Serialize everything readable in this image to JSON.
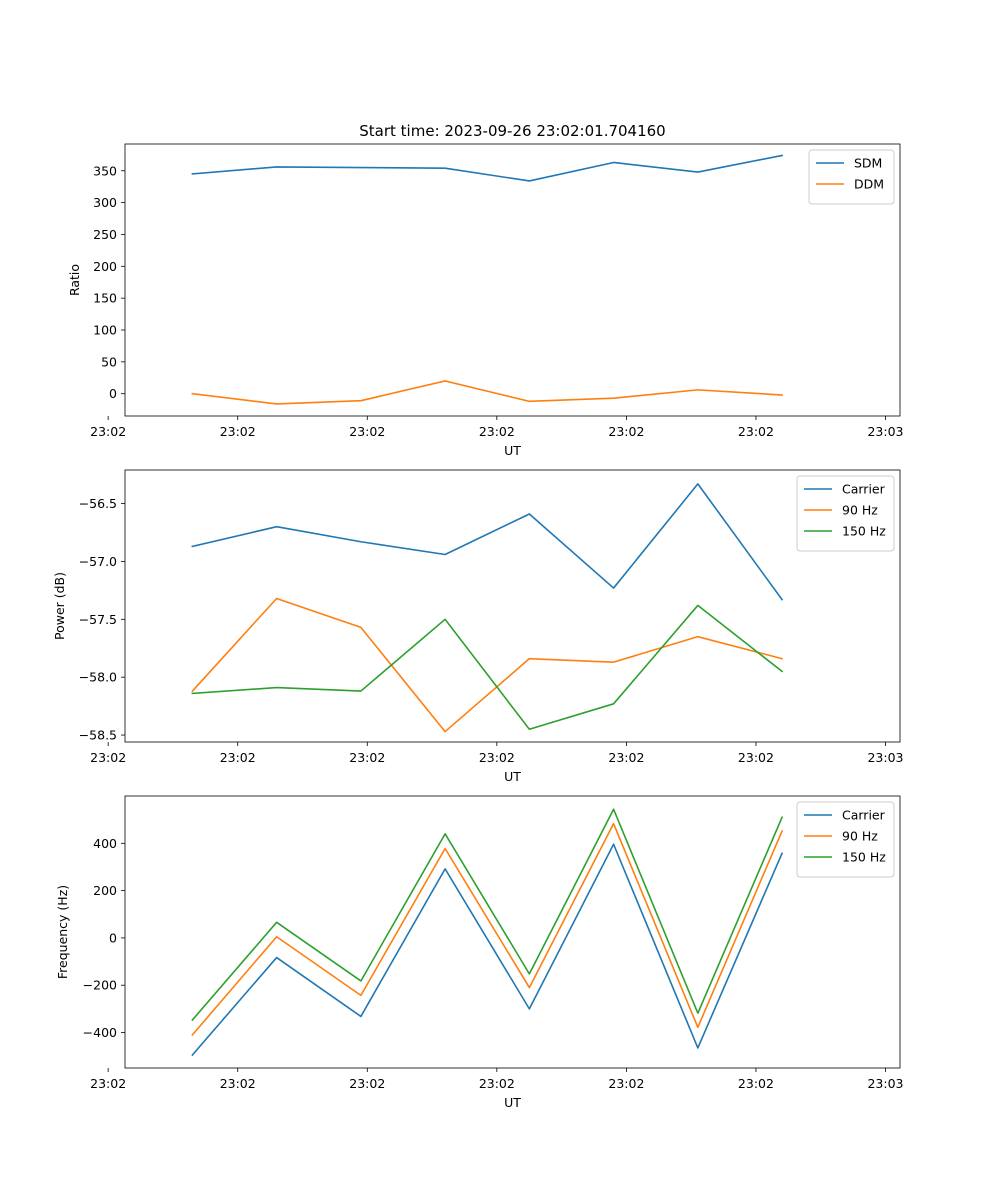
{
  "chart_data": [
    {
      "type": "line",
      "title": "Start time: 2023-09-26 23:02:01.704160",
      "xlabel": "UT",
      "ylabel": "Ratio",
      "x": [
        1,
        2,
        3,
        4,
        5,
        6,
        7,
        8
      ],
      "xlim": [
        0.2,
        9.4
      ],
      "xticks": [
        0,
        1.538,
        3.076,
        4.614,
        6.152,
        7.69,
        9.228
      ],
      "xtick_labels": [
        "23:02",
        "23:02",
        "23:02",
        "23:02",
        "23:02",
        "23:02",
        "23:03"
      ],
      "ylim": [
        -35,
        392
      ],
      "yticks": [
        0,
        50,
        100,
        150,
        200,
        250,
        300,
        350
      ],
      "ytick_labels": [
        "0",
        "50",
        "100",
        "150",
        "200",
        "250",
        "300",
        "350"
      ],
      "grid": false,
      "legend_position": "top-right",
      "series": [
        {
          "name": "SDM",
          "color": "#1f77b4",
          "values": [
            345,
            356,
            355,
            354,
            334,
            363,
            348,
            374
          ]
        },
        {
          "name": "DDM",
          "color": "#ff7f0e",
          "values": [
            0,
            -16,
            -11,
            20,
            -12,
            -7,
            6,
            -2
          ]
        }
      ]
    },
    {
      "type": "line",
      "title": "",
      "xlabel": "UT",
      "ylabel": "Power (dB)",
      "x": [
        1,
        2,
        3,
        4,
        5,
        6,
        7,
        8
      ],
      "xlim": [
        0.2,
        9.4
      ],
      "xticks": [
        0,
        1.538,
        3.076,
        4.614,
        6.152,
        7.69,
        9.228
      ],
      "xtick_labels": [
        "23:02",
        "23:02",
        "23:02",
        "23:02",
        "23:02",
        "23:02",
        "23:03"
      ],
      "ylim": [
        -58.56,
        -56.21
      ],
      "yticks": [
        -58.5,
        -58.0,
        -57.5,
        -57.0,
        -56.5
      ],
      "ytick_labels": [
        "−58.5",
        "−58.0",
        "−57.5",
        "−57.0",
        "−56.5"
      ],
      "grid": false,
      "legend_position": "top-right",
      "series": [
        {
          "name": "Carrier",
          "color": "#1f77b4",
          "values": [
            -56.87,
            -56.7,
            -56.83,
            -56.94,
            -56.59,
            -57.23,
            -56.33,
            -57.33
          ]
        },
        {
          "name": "90 Hz",
          "color": "#ff7f0e",
          "values": [
            -58.12,
            -57.32,
            -57.57,
            -58.47,
            -57.84,
            -57.87,
            -57.65,
            -57.84
          ]
        },
        {
          "name": "150 Hz",
          "color": "#2ca02c",
          "values": [
            -58.14,
            -58.09,
            -58.12,
            -57.5,
            -58.45,
            -58.23,
            -57.38,
            -57.95
          ]
        }
      ]
    },
    {
      "type": "line",
      "title": "",
      "xlabel": "UT",
      "ylabel": "Frequency (Hz)",
      "x": [
        1,
        2,
        3,
        4,
        5,
        6,
        7,
        8
      ],
      "xlim": [
        0.2,
        9.4
      ],
      "xticks": [
        0,
        1.538,
        3.076,
        4.614,
        6.152,
        7.69,
        9.228
      ],
      "xtick_labels": [
        "23:02",
        "23:02",
        "23:02",
        "23:02",
        "23:02",
        "23:02",
        "23:03"
      ],
      "ylim": [
        -550,
        600
      ],
      "yticks": [
        -400,
        -200,
        0,
        200,
        400
      ],
      "ytick_labels": [
        "−400",
        "−200",
        "0",
        "200",
        "400"
      ],
      "grid": false,
      "legend_position": "top-right",
      "series": [
        {
          "name": "Carrier",
          "color": "#1f77b4",
          "values": [
            -495,
            -83,
            -332,
            292,
            -300,
            396,
            -465,
            358
          ]
        },
        {
          "name": "90 Hz",
          "color": "#ff7f0e",
          "values": [
            -410,
            5,
            -243,
            378,
            -210,
            483,
            -378,
            452
          ]
        },
        {
          "name": "150 Hz",
          "color": "#2ca02c",
          "values": [
            -347,
            66,
            -182,
            440,
            -152,
            544,
            -318,
            510
          ]
        }
      ]
    }
  ]
}
